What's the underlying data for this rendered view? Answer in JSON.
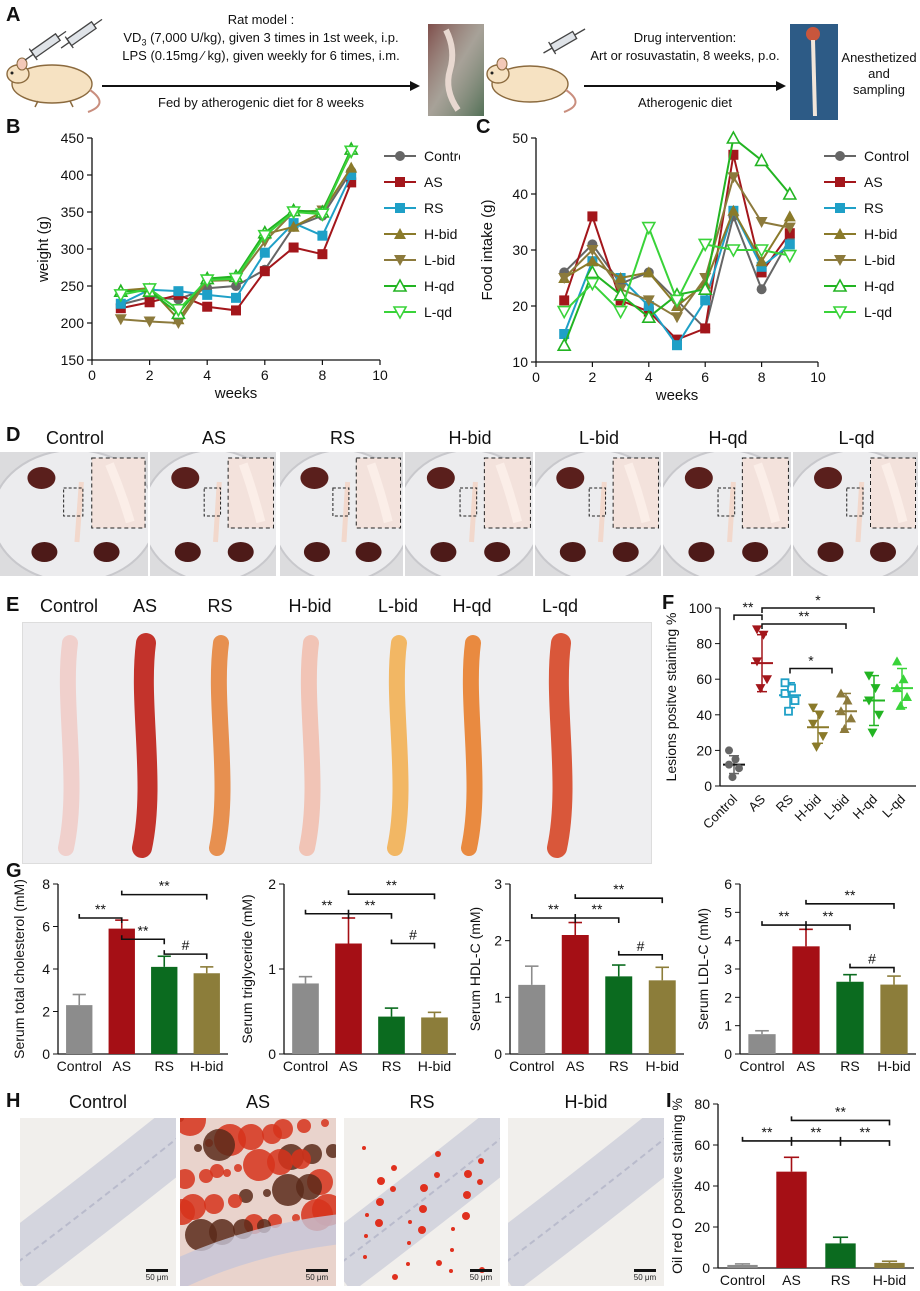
{
  "panels": {
    "A": "A",
    "B": "B",
    "C": "C",
    "D": "D",
    "E": "E",
    "F": "F",
    "G": "G",
    "H": "H",
    "I": "I"
  },
  "panelA": {
    "rat_title": "Rat model :",
    "vd3_prefix": "VD",
    "vd3_sub": "3",
    "vd3_rest": " (7,000 U/kg), given 3 times in 1st week, i.p.",
    "lps_line": "LPS (0.15mg ⁄ kg), given weekly for 6 times, i.m.",
    "fed_line": "Fed by atherogenic diet for 8 weeks",
    "drug_title": "Drug intervention:",
    "drug_line": "Art or rosuvastatin, 8 weeks, p.o.",
    "diet_line": "Atherogenic diet",
    "end_line1": "Anesthetized",
    "end_line2": "and",
    "end_line3": "sampling"
  },
  "groups7": [
    "Control",
    "AS",
    "RS",
    "H-bid",
    "L-bid",
    "H-qd",
    "L-qd"
  ],
  "groups4": [
    "Control",
    "AS",
    "RS",
    "H-bid"
  ],
  "scale_label": "50 μm",
  "colors": {
    "Control": "#666666",
    "AS": "#a3161b",
    "RS": "#1fa0c7",
    "H-bid": "#8a7a2a",
    "L-bid": "#8c7a3c",
    "H-qd": "#22b422",
    "L-qd": "#39d339",
    "g_control": "#8c8c8c",
    "g_as": "#a50f15",
    "g_rs": "#0b6b1f",
    "g_hbid": "#8c7d3a"
  },
  "chart_data": [
    {
      "id": "B",
      "type": "line",
      "xlabel": "weeks",
      "ylabel": "weight (g)",
      "xlim": [
        0,
        10
      ],
      "ylim": [
        150,
        450
      ],
      "xticks": [
        "0",
        "2",
        "4",
        "6",
        "8",
        "10"
      ],
      "yticks": [
        "150",
        "200",
        "250",
        "300",
        "350",
        "400",
        "450"
      ],
      "x": [
        1,
        2,
        3,
        4,
        5,
        6,
        7,
        8,
        9
      ],
      "series": [
        {
          "name": "Control",
          "marker": "circle",
          "values": [
            225,
            235,
            232,
            247,
            250,
            272,
            330,
            345,
            405
          ]
        },
        {
          "name": "AS",
          "marker": "square",
          "values": [
            220,
            228,
            238,
            222,
            217,
            270,
            302,
            293,
            390
          ]
        },
        {
          "name": "RS",
          "marker": "square",
          "values": [
            226,
            245,
            243,
            238,
            234,
            295,
            335,
            318,
            400
          ]
        },
        {
          "name": "H-bid",
          "marker": "tri-up",
          "values": [
            244,
            247,
            205,
            260,
            262,
            320,
            330,
            350,
            410
          ]
        },
        {
          "name": "L-bid",
          "marker": "tri-down",
          "values": [
            205,
            202,
            200,
            257,
            258,
            310,
            350,
            352,
            430
          ]
        },
        {
          "name": "H-qd",
          "marker": "tri-up-open",
          "values": [
            243,
            243,
            213,
            260,
            263,
            322,
            352,
            350,
            435
          ]
        },
        {
          "name": "L-qd",
          "marker": "tri-down-open",
          "values": [
            238,
            246,
            218,
            258,
            260,
            318,
            350,
            347,
            432
          ]
        }
      ]
    },
    {
      "id": "C",
      "type": "line",
      "xlabel": "weeks",
      "ylabel": "Food intake (g)",
      "xlim": [
        0,
        10
      ],
      "ylim": [
        10,
        50
      ],
      "xticks": [
        "0",
        "2",
        "4",
        "6",
        "8",
        "10"
      ],
      "yticks": [
        "10",
        "20",
        "30",
        "40",
        "50"
      ],
      "x": [
        1,
        2,
        3,
        4,
        5,
        6,
        7,
        8,
        9
      ],
      "series": [
        {
          "name": "Control",
          "marker": "circle",
          "values": [
            26,
            31,
            24,
            26,
            21,
            16,
            36,
            23,
            32
          ]
        },
        {
          "name": "AS",
          "marker": "square",
          "values": [
            21,
            36,
            21,
            19,
            14,
            16,
            47,
            26,
            33
          ]
        },
        {
          "name": "RS",
          "marker": "square",
          "values": [
            15,
            28,
            25,
            20,
            13,
            21,
            37,
            27,
            31
          ]
        },
        {
          "name": "H-bid",
          "marker": "tri-up",
          "values": [
            25,
            28,
            25,
            26,
            20,
            24,
            37,
            28,
            36
          ]
        },
        {
          "name": "L-bid",
          "marker": "tri-down",
          "values": [
            25,
            30,
            23,
            21,
            18,
            25,
            43,
            35,
            34
          ]
        },
        {
          "name": "H-qd",
          "marker": "tri-up-open",
          "values": [
            13,
            26,
            22,
            18,
            22,
            23,
            50,
            46,
            40
          ]
        },
        {
          "name": "L-qd",
          "marker": "tri-down-open",
          "values": [
            19,
            24,
            19,
            34,
            21,
            31,
            30,
            30,
            29
          ]
        }
      ]
    },
    {
      "id": "F",
      "type": "scatter",
      "ylabel": "Lesions positve stainting %",
      "ylim": [
        0,
        100
      ],
      "yticks": [
        "0",
        "20",
        "40",
        "60",
        "80",
        "100"
      ],
      "categories": [
        "Control",
        "AS",
        "RS",
        "H-bid",
        "L-bid",
        "H-qd",
        "L-qd"
      ],
      "points": [
        [
          5,
          10,
          12,
          15,
          20
        ],
        [
          55,
          60,
          70,
          85,
          88
        ],
        [
          42,
          48,
          52,
          55,
          58
        ],
        [
          22,
          28,
          35,
          40,
          44
        ],
        [
          32,
          38,
          42,
          48,
          52
        ],
        [
          30,
          40,
          48,
          55,
          62
        ],
        [
          45,
          50,
          55,
          60,
          70
        ]
      ],
      "mean": [
        12,
        69,
        51,
        33,
        42,
        48,
        55
      ],
      "sd": [
        5,
        16,
        7,
        9,
        10,
        14,
        11
      ],
      "annotations": [
        {
          "from": 0,
          "to": 1,
          "text": "**",
          "y": 96
        },
        {
          "from": 1,
          "to": 5,
          "text": "*",
          "y": 100
        },
        {
          "from": 1,
          "to": 4,
          "text": "**",
          "y": 91
        },
        {
          "from": 2,
          "to": 3.5,
          "text": "*",
          "y": 66
        }
      ]
    },
    {
      "id": "G1",
      "type": "bar",
      "ylabel": "Serum total cholesterol (mM)",
      "ylim": [
        0,
        8
      ],
      "yticks": [
        "0",
        "2",
        "4",
        "6",
        "8"
      ],
      "categories": [
        "Control",
        "AS",
        "RS",
        "H-bid"
      ],
      "values": [
        2.3,
        5.9,
        4.1,
        3.8
      ],
      "errors": [
        0.5,
        0.4,
        0.5,
        0.3
      ],
      "annotations": [
        {
          "from": 0,
          "to": 1,
          "text": "**",
          "y": 6.4
        },
        {
          "from": 1,
          "to": 2,
          "text": "**",
          "y": 5.4
        },
        {
          "from": 1,
          "to": 3,
          "text": "**",
          "y": 7.5
        },
        {
          "from": 2,
          "to": 3,
          "text": "#",
          "y": 4.7
        }
      ]
    },
    {
      "id": "G2",
      "type": "bar",
      "ylabel": "Serum triglyceride (mM)",
      "ylim": [
        0,
        2
      ],
      "yticks": [
        "0",
        "1",
        "2"
      ],
      "categories": [
        "Control",
        "AS",
        "RS",
        "H-bid"
      ],
      "values": [
        0.83,
        1.3,
        0.44,
        0.43
      ],
      "errors": [
        0.08,
        0.3,
        0.1,
        0.06
      ],
      "annotations": [
        {
          "from": 0,
          "to": 1,
          "text": "**",
          "y": 1.65
        },
        {
          "from": 1,
          "to": 2,
          "text": "**",
          "y": 1.65
        },
        {
          "from": 1,
          "to": 3,
          "text": "**",
          "y": 1.88
        },
        {
          "from": 2,
          "to": 3,
          "text": "#",
          "y": 1.3
        }
      ]
    },
    {
      "id": "G3",
      "type": "bar",
      "ylabel": "Serum HDL-C (mM)",
      "ylim": [
        0,
        3
      ],
      "yticks": [
        "0",
        "1",
        "2",
        "3"
      ],
      "categories": [
        "Control",
        "AS",
        "RS",
        "H-bid"
      ],
      "values": [
        1.22,
        2.1,
        1.37,
        1.3
      ],
      "errors": [
        0.33,
        0.22,
        0.2,
        0.23
      ],
      "annotations": [
        {
          "from": 0,
          "to": 1,
          "text": "**",
          "y": 2.4
        },
        {
          "from": 1,
          "to": 2,
          "text": "**",
          "y": 2.4
        },
        {
          "from": 1,
          "to": 3,
          "text": "**",
          "y": 2.75
        },
        {
          "from": 2,
          "to": 3,
          "text": "#",
          "y": 1.75
        }
      ]
    },
    {
      "id": "G4",
      "type": "bar",
      "ylabel": "Serum LDL-C (mM)",
      "ylim": [
        0,
        6
      ],
      "yticks": [
        "0",
        "1",
        "2",
        "3",
        "4",
        "5",
        "6"
      ],
      "categories": [
        "Control",
        "AS",
        "RS",
        "H-bid"
      ],
      "values": [
        0.7,
        3.8,
        2.55,
        2.45
      ],
      "errors": [
        0.12,
        0.6,
        0.25,
        0.3
      ],
      "annotations": [
        {
          "from": 0,
          "to": 1,
          "text": "**",
          "y": 4.55
        },
        {
          "from": 1,
          "to": 2,
          "text": "**",
          "y": 4.55
        },
        {
          "from": 1,
          "to": 3,
          "text": "**",
          "y": 5.3
        },
        {
          "from": 2,
          "to": 3,
          "text": "#",
          "y": 3.05
        }
      ]
    },
    {
      "id": "I",
      "type": "bar",
      "ylabel": "Oil red O positive staining %",
      "ylim": [
        0,
        80
      ],
      "yticks": [
        "0",
        "20",
        "40",
        "60",
        "80"
      ],
      "categories": [
        "Control",
        "AS",
        "RS",
        "H-bid"
      ],
      "values": [
        1.5,
        47,
        12,
        2.5
      ],
      "errors": [
        0.5,
        7,
        3,
        0.8
      ],
      "annotations": [
        {
          "from": 0,
          "to": 1,
          "text": "**",
          "y": 62
        },
        {
          "from": 1,
          "to": 2,
          "text": "**",
          "y": 62
        },
        {
          "from": 2,
          "to": 3,
          "text": "**",
          "y": 62
        },
        {
          "from": 1,
          "to": 3,
          "text": "**",
          "y": 72
        }
      ]
    }
  ]
}
